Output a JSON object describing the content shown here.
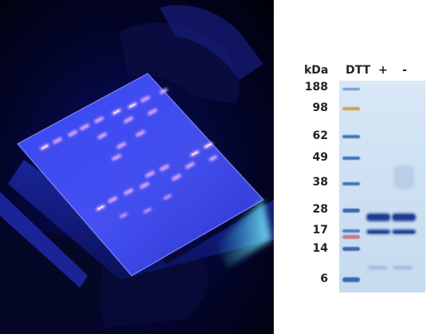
{
  "gel_panel": {
    "unit_label": "kDa",
    "lane_labels": [
      "DTT",
      "+",
      "-"
    ],
    "marker_weights": [
      "188",
      "98",
      "62",
      "49",
      "38",
      "28",
      "17",
      "14",
      "6"
    ]
  },
  "colors": {
    "uv_blue": "#2a35ff",
    "band_glow": "#f0b0ff",
    "gel_background": "#cfe1f3",
    "marker_band": "#3f6fb5",
    "marker_98": "#c9a050",
    "marker_17": "#c87a8a",
    "protein_band": "#26459a"
  }
}
